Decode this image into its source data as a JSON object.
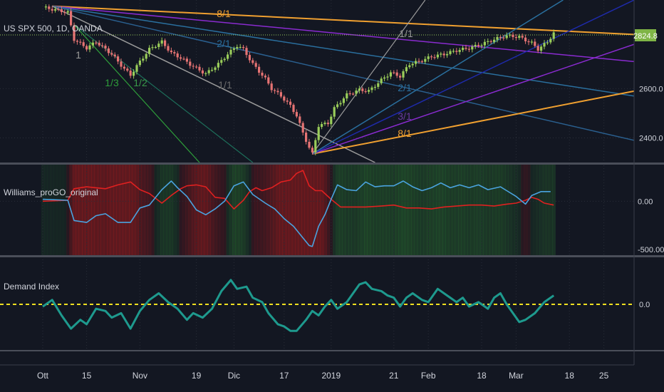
{
  "main": {
    "title": "US SPX 500, 1D, OANDA",
    "last_price": "2824.8",
    "y_ticks": [
      {
        "value": 2600,
        "label": "2600.0"
      },
      {
        "value": 2400,
        "label": "2400.0"
      }
    ]
  },
  "osc": {
    "title": "Williams_proGO_original",
    "ticks": [
      {
        "value": 0,
        "label": "0.00"
      },
      {
        "value": -500,
        "label": "-500.00"
      }
    ]
  },
  "demand": {
    "title": "Demand Index",
    "ticks": [
      {
        "value": 0,
        "label": "0.0"
      }
    ]
  },
  "x_ticks": [
    {
      "day": 0,
      "label": "Ott"
    },
    {
      "day": 14,
      "label": "15"
    },
    {
      "day": 31,
      "label": "Nov"
    },
    {
      "day": 49,
      "label": "19"
    },
    {
      "day": 61,
      "label": "Dic"
    },
    {
      "day": 77,
      "label": "17"
    },
    {
      "day": 92,
      "label": "2019"
    },
    {
      "day": 112,
      "label": "21"
    },
    {
      "day": 123,
      "label": "Feb"
    },
    {
      "day": 140,
      "label": "18"
    },
    {
      "day": 151,
      "label": "Mar"
    },
    {
      "day": 168,
      "label": "18"
    },
    {
      "day": 179,
      "label": "25"
    }
  ],
  "fan_labels": [
    {
      "text": "8/1",
      "color": "#f0a030"
    },
    {
      "text": "2/1",
      "color": "#2a6f9e"
    },
    {
      "text": "1/3",
      "color": "#2e9d3a"
    },
    {
      "text": "1/2",
      "color": "#3a9a4a"
    },
    {
      "text": "1/1",
      "color": "#6c6c6c"
    },
    {
      "text": "1/1",
      "color": "#9a9a9a"
    },
    {
      "text": "2/1",
      "color": "#2a6f9e"
    },
    {
      "text": "3/1",
      "color": "#6a3aa0"
    },
    {
      "text": "8/1",
      "color": "#f0a030"
    },
    {
      "text": "1",
      "color": "#9a9a9a"
    }
  ],
  "colors": {
    "background": "#131722",
    "up_candle": "#9acd5a",
    "down_candle": "#e57373",
    "williams_red": "#e02020",
    "williams_blue": "#4aa3df",
    "demand_line": "#1e9a8e",
    "zero_line": "#f0e020",
    "price_tag": "#7fb446"
  },
  "chart_data": [
    {
      "type": "candlestick",
      "title": "US SPX 500, 1D, OANDA",
      "x_unit": "trading days from start of October 2018",
      "ylim": [
        2300,
        2960
      ],
      "last_price": 2824.8,
      "close_path": [
        [
          0,
          2930
        ],
        [
          8,
          2910
        ],
        [
          10,
          2800
        ],
        [
          14,
          2765
        ],
        [
          17,
          2790
        ],
        [
          22,
          2740
        ],
        [
          26,
          2680
        ],
        [
          28,
          2655
        ],
        [
          31,
          2710
        ],
        [
          34,
          2760
        ],
        [
          38,
          2790
        ],
        [
          41,
          2745
        ],
        [
          44,
          2725
        ],
        [
          48,
          2690
        ],
        [
          52,
          2660
        ],
        [
          56,
          2700
        ],
        [
          59,
          2740
        ],
        [
          62,
          2775
        ],
        [
          64,
          2760
        ],
        [
          67,
          2700
        ],
        [
          71,
          2640
        ],
        [
          73,
          2600
        ],
        [
          76,
          2570
        ],
        [
          79,
          2530
        ],
        [
          81,
          2490
        ],
        [
          83,
          2420
        ],
        [
          85,
          2360
        ],
        [
          86,
          2335
        ],
        [
          88,
          2450
        ],
        [
          91,
          2460
        ],
        [
          93,
          2520
        ],
        [
          97,
          2575
        ],
        [
          101,
          2595
        ],
        [
          104,
          2590
        ],
        [
          108,
          2635
        ],
        [
          111,
          2665
        ],
        [
          114,
          2650
        ],
        [
          117,
          2700
        ],
        [
          120,
          2710
        ],
        [
          124,
          2730
        ],
        [
          128,
          2740
        ],
        [
          132,
          2755
        ],
        [
          136,
          2765
        ],
        [
          140,
          2780
        ],
        [
          144,
          2800
        ],
        [
          148,
          2815
        ],
        [
          152,
          2810
        ],
        [
          156,
          2785
        ],
        [
          158,
          2760
        ],
        [
          161,
          2790
        ],
        [
          163,
          2825
        ]
      ]
    },
    {
      "type": "line",
      "title": "Williams_proGO_original",
      "ylim": [
        -560,
        380
      ],
      "series": [
        {
          "color": "#e02020",
          "values": [
            [
              0,
              0
            ],
            [
              8,
              10
            ],
            [
              10,
              130
            ],
            [
              14,
              150
            ],
            [
              20,
              130
            ],
            [
              24,
              170
            ],
            [
              28,
              200
            ],
            [
              31,
              120
            ],
            [
              34,
              80
            ],
            [
              38,
              -20
            ],
            [
              41,
              60
            ],
            [
              44,
              130
            ],
            [
              46,
              160
            ],
            [
              49,
              170
            ],
            [
              52,
              150
            ],
            [
              55,
              40
            ],
            [
              58,
              30
            ],
            [
              61,
              -80
            ],
            [
              64,
              10
            ],
            [
              66,
              100
            ],
            [
              68,
              140
            ],
            [
              70,
              110
            ],
            [
              73,
              140
            ],
            [
              76,
              200
            ],
            [
              79,
              220
            ],
            [
              81,
              290
            ],
            [
              83,
              320
            ],
            [
              85,
              160
            ],
            [
              87,
              110
            ],
            [
              89,
              110
            ],
            [
              92,
              20
            ],
            [
              95,
              -60
            ],
            [
              99,
              -60
            ],
            [
              103,
              -60
            ],
            [
              108,
              -50
            ],
            [
              112,
              -40
            ],
            [
              116,
              -70
            ],
            [
              120,
              -70
            ],
            [
              124,
              -80
            ],
            [
              128,
              -60
            ],
            [
              132,
              -50
            ],
            [
              136,
              -40
            ],
            [
              140,
              -40
            ],
            [
              144,
              -50
            ],
            [
              148,
              -30
            ],
            [
              151,
              -20
            ],
            [
              154,
              10
            ],
            [
              156,
              40
            ],
            [
              158,
              20
            ],
            [
              160,
              -20
            ],
            [
              163,
              -40
            ]
          ]
        },
        {
          "color": "#4aa3df",
          "values": [
            [
              0,
              20
            ],
            [
              8,
              10
            ],
            [
              10,
              -200
            ],
            [
              14,
              -220
            ],
            [
              17,
              -150
            ],
            [
              20,
              -130
            ],
            [
              24,
              -220
            ],
            [
              28,
              -220
            ],
            [
              31,
              -70
            ],
            [
              34,
              -40
            ],
            [
              38,
              120
            ],
            [
              41,
              210
            ],
            [
              43,
              140
            ],
            [
              46,
              50
            ],
            [
              49,
              -90
            ],
            [
              52,
              -140
            ],
            [
              55,
              -80
            ],
            [
              58,
              0
            ],
            [
              61,
              160
            ],
            [
              64,
              200
            ],
            [
              67,
              70
            ],
            [
              71,
              -20
            ],
            [
              74,
              -80
            ],
            [
              77,
              -180
            ],
            [
              80,
              -260
            ],
            [
              83,
              -380
            ],
            [
              85,
              -460
            ],
            [
              86,
              -470
            ],
            [
              88,
              -260
            ],
            [
              90,
              -140
            ],
            [
              92,
              20
            ],
            [
              94,
              170
            ],
            [
              97,
              120
            ],
            [
              100,
              110
            ],
            [
              103,
              200
            ],
            [
              106,
              150
            ],
            [
              109,
              160
            ],
            [
              112,
              160
            ],
            [
              115,
              210
            ],
            [
              118,
              150
            ],
            [
              121,
              110
            ],
            [
              124,
              140
            ],
            [
              127,
              190
            ],
            [
              130,
              140
            ],
            [
              133,
              170
            ],
            [
              136,
              140
            ],
            [
              139,
              170
            ],
            [
              142,
              120
            ],
            [
              146,
              150
            ],
            [
              148,
              110
            ],
            [
              151,
              50
            ],
            [
              154,
              -30
            ],
            [
              156,
              60
            ],
            [
              159,
              100
            ],
            [
              162,
              100
            ]
          ]
        }
      ]
    },
    {
      "type": "line",
      "title": "Demand Index",
      "ylim": [
        -1,
        1
      ],
      "series": [
        {
          "color": "#1e9a8e",
          "values": [
            [
              0,
              -0.05
            ],
            [
              3,
              0.1
            ],
            [
              6,
              -0.25
            ],
            [
              9,
              -0.55
            ],
            [
              12,
              -0.35
            ],
            [
              14,
              -0.45
            ],
            [
              17,
              -0.1
            ],
            [
              20,
              -0.15
            ],
            [
              22,
              -0.3
            ],
            [
              25,
              -0.2
            ],
            [
              28,
              -0.55
            ],
            [
              31,
              -0.15
            ],
            [
              34,
              0.1
            ],
            [
              37,
              0.25
            ],
            [
              40,
              0.05
            ],
            [
              43,
              -0.1
            ],
            [
              46,
              -0.35
            ],
            [
              48,
              -0.2
            ],
            [
              51,
              -0.3
            ],
            [
              54,
              -0.1
            ],
            [
              57,
              0.3
            ],
            [
              60,
              0.55
            ],
            [
              62,
              0.35
            ],
            [
              65,
              0.4
            ],
            [
              67,
              0.15
            ],
            [
              70,
              0.05
            ],
            [
              72,
              -0.2
            ],
            [
              75,
              -0.45
            ],
            [
              77,
              -0.5
            ],
            [
              79,
              -0.6
            ],
            [
              81,
              -0.6
            ],
            [
              84,
              -0.35
            ],
            [
              86,
              -0.15
            ],
            [
              88,
              -0.25
            ],
            [
              90,
              -0.05
            ],
            [
              92,
              0.1
            ],
            [
              94,
              -0.1
            ],
            [
              97,
              0.05
            ],
            [
              99,
              0.25
            ],
            [
              101,
              0.45
            ],
            [
              103,
              0.5
            ],
            [
              105,
              0.35
            ],
            [
              108,
              0.3
            ],
            [
              110,
              0.2
            ],
            [
              112,
              0.15
            ],
            [
              114,
              -0.05
            ],
            [
              116,
              0.15
            ],
            [
              118,
              0.25
            ],
            [
              121,
              0.1
            ],
            [
              123,
              0.05
            ],
            [
              126,
              0.35
            ],
            [
              129,
              0.2
            ],
            [
              132,
              0.05
            ],
            [
              134,
              0.15
            ],
            [
              136,
              -0.05
            ],
            [
              139,
              0.05
            ],
            [
              142,
              -0.1
            ],
            [
              144,
              0.15
            ],
            [
              146,
              0.25
            ],
            [
              148,
              0.0
            ],
            [
              150,
              -0.2
            ],
            [
              152,
              -0.4
            ],
            [
              154,
              -0.35
            ],
            [
              157,
              -0.2
            ],
            [
              160,
              0.05
            ],
            [
              163,
              0.2
            ]
          ]
        }
      ],
      "zero_line": 0
    }
  ]
}
